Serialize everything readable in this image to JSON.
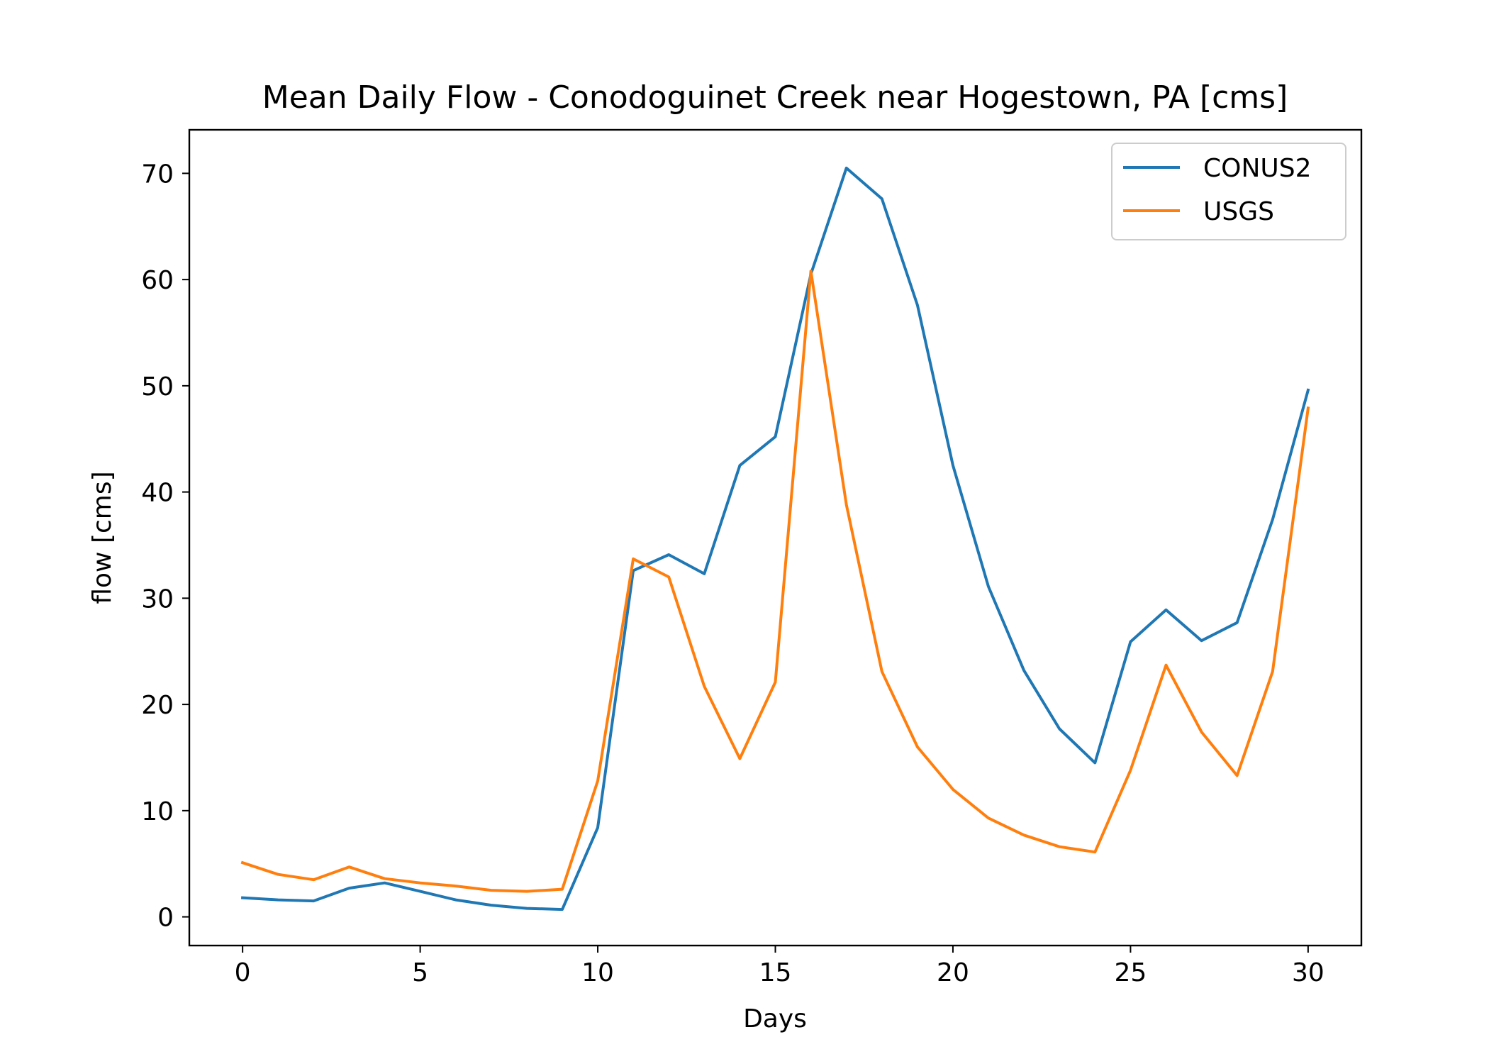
{
  "chart_data": {
    "type": "line",
    "title": "Mean Daily Flow - Conodoguinet Creek near Hogestown, PA [cms]",
    "xlabel": "Days",
    "ylabel": "flow [cms]",
    "xlim": [
      -1.5,
      31.5
    ],
    "ylim": [
      -2.7,
      74.1
    ],
    "xticks": [
      0,
      5,
      10,
      15,
      20,
      25,
      30
    ],
    "yticks": [
      0,
      10,
      20,
      30,
      40,
      50,
      60,
      70
    ],
    "grid": false,
    "legend_position": "upper right",
    "x": [
      0,
      1,
      2,
      3,
      4,
      5,
      6,
      7,
      8,
      9,
      10,
      11,
      12,
      13,
      14,
      15,
      16,
      17,
      18,
      19,
      20,
      21,
      22,
      23,
      24,
      25,
      26,
      27,
      28,
      29,
      30
    ],
    "series": [
      {
        "name": "CONUS2",
        "color": "#1f77b4",
        "values": [
          1.8,
          1.6,
          1.5,
          2.7,
          3.2,
          2.4,
          1.6,
          1.1,
          0.8,
          0.7,
          8.4,
          32.6,
          34.1,
          32.3,
          42.5,
          45.2,
          60.5,
          70.5,
          67.6,
          57.6,
          42.5,
          31.1,
          23.2,
          17.7,
          14.5,
          25.9,
          28.9,
          26.0,
          27.7,
          37.4,
          49.6
        ]
      },
      {
        "name": "USGS",
        "color": "#ff7f0e",
        "values": [
          5.1,
          4.0,
          3.5,
          4.7,
          3.6,
          3.2,
          2.9,
          2.5,
          2.4,
          2.6,
          12.8,
          33.7,
          32.0,
          21.7,
          14.9,
          22.1,
          60.8,
          38.8,
          23.1,
          16.0,
          12.0,
          9.3,
          7.7,
          6.6,
          6.1,
          13.8,
          23.7,
          17.4,
          13.3,
          23.1,
          47.9
        ]
      }
    ]
  }
}
